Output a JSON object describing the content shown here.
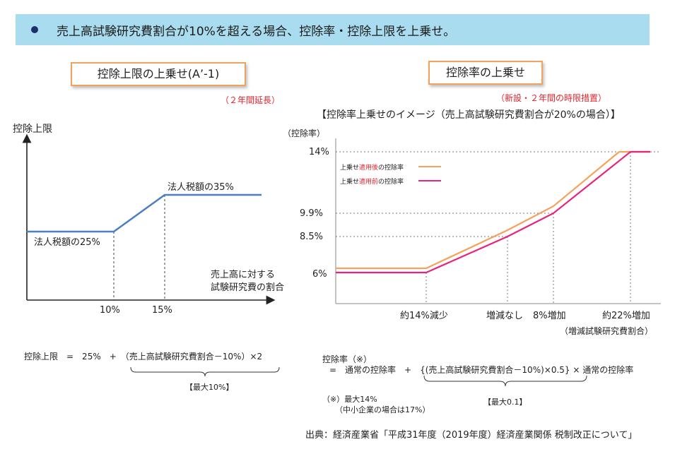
{
  "banner": {
    "text": "売上高試験研究費割合が10%を超える場合、控除率・控除上限を上乗せ。"
  },
  "left": {
    "title": "控除上限の上乗せ(A’-1)",
    "note": "（２年間延長）",
    "y_label": "控除上限",
    "low_label": "法人税額の25%",
    "high_label": "法人税額の35%",
    "x_label_1": "売上高に対する",
    "x_label_2": "試験研究費の割合",
    "tick_1": "10%",
    "tick_2": "15%",
    "formula": "控除上限　=　25%　+　（売上高試験研究費割合－10%）×2",
    "max": "【最大10%】"
  },
  "right": {
    "title": "控除率の上乗せ",
    "note": "（新設・２年間の時限措置）",
    "subtitle": "【控除率上乗せのイメージ（売上高試験研究費割合が20%の場合）】",
    "y_label": "（控除率）",
    "y_ticks": [
      "14%",
      "9.9%",
      "8.5%",
      "6%"
    ],
    "x_ticks": [
      "約14%減少",
      "増減なし",
      "8%増加",
      "約22%増加"
    ],
    "x_label": "（増減試験研究費割合）",
    "legend_after_prefix": "上乗せ",
    "legend_after_red": "適用後",
    "legend_after_suffix": "の控除率",
    "legend_before_prefix": "上乗せ",
    "legend_before_red": "適用前",
    "legend_before_suffix": "の控除率",
    "formula_line1": "控除率（※）",
    "formula_line2": "=　通常の控除率　+　{(売上高試験研究費割合－10%)×0.5} × 通常の控除率",
    "max": "【最大0.1】",
    "footnote_1": "（※）最大14%",
    "footnote_2": "（中小企業の場合は17%）"
  },
  "source": "出典：経済産業省「平成31年度（2019年度）経済産業関係 税制改正について」",
  "colors": {
    "left_line": "#4a7fc1",
    "after_line": "#f5a25a",
    "before_line": "#e8237a",
    "banner": "#a9dcee",
    "box_border": "#f2a25c",
    "note_red": "#e8232d"
  },
  "chart_data": [
    {
      "type": "line",
      "title": "控除上限の上乗せ(A’-1)",
      "ylabel": "控除上限",
      "xlabel": "売上高に対する試験研究費の割合",
      "x": [
        "",
        "10%",
        "15%",
        ""
      ],
      "series": [
        {
          "values_labels": [
            "法人税額の25%",
            "法人税額の25%",
            "法人税額の35%",
            "法人税額の35%"
          ]
        }
      ]
    },
    {
      "type": "line",
      "title": "【控除率上乗せのイメージ（売上高試験研究費割合が20%の場合）】",
      "ylabel": "（控除率）",
      "xlabel": "（増減試験研究費割合）",
      "x": [
        "",
        "約14%減少",
        "増減なし",
        "8%増加",
        "約22%増加",
        ""
      ],
      "series": [
        {
          "name": "上乗せ適用後の控除率",
          "values": [
            6.6,
            6.6,
            9.35,
            10.9,
            14,
            14
          ]
        },
        {
          "name": "上乗せ適用前の控除率",
          "values": [
            6,
            6,
            8.5,
            9.9,
            14,
            14
          ]
        }
      ],
      "y_ticks": [
        6,
        8.5,
        9.9,
        14
      ]
    }
  ]
}
